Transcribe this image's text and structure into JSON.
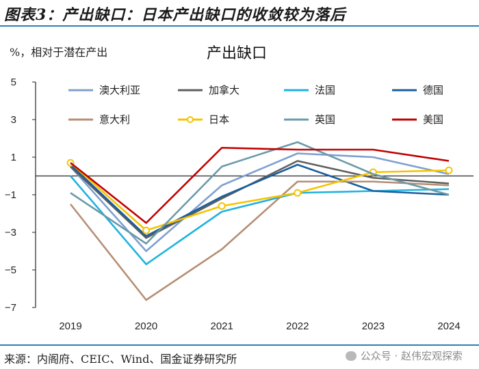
{
  "figure": {
    "title": "图表3：产出缺口：日本产出缺口的收敛较为落后",
    "source": "来源：内阁府、CEIC、Wind、国金证券研究所",
    "watermark": "公众号 · 赵伟宏观探索"
  },
  "chart_data": {
    "type": "line",
    "title": "产出缺口",
    "ylabel": "%，相对于潜在产出",
    "xlabel": "",
    "x": [
      "2019",
      "2020",
      "2021",
      "2022",
      "2023",
      "2024"
    ],
    "ylim": [
      -7,
      5
    ],
    "yticks": [
      5,
      3,
      1,
      -1,
      -3,
      -5,
      -7
    ],
    "grid": false,
    "legend_position": "top",
    "series": [
      {
        "name": "澳大利亚",
        "color": "#7f9fd0",
        "marker": "none",
        "values": [
          0.5,
          -4.0,
          -0.5,
          1.2,
          1.0,
          0.1
        ]
      },
      {
        "name": "加拿大",
        "color": "#5f5f5f",
        "marker": "none",
        "values": [
          0.5,
          -3.3,
          -1.2,
          0.8,
          -0.1,
          -0.4
        ]
      },
      {
        "name": "法国",
        "color": "#1fb2e0",
        "marker": "none",
        "values": [
          0.0,
          -4.7,
          -1.9,
          -0.9,
          -0.8,
          -0.7
        ]
      },
      {
        "name": "德国",
        "color": "#1a5e9c",
        "marker": "none",
        "values": [
          0.6,
          -3.2,
          -1.1,
          0.6,
          -0.8,
          -1.0
        ]
      },
      {
        "name": "意大利",
        "color": "#b58e74",
        "marker": "none",
        "values": [
          -1.5,
          -6.6,
          -3.9,
          -0.3,
          -0.3,
          -0.5
        ]
      },
      {
        "name": "日本",
        "color": "#f5c400",
        "marker": "circle",
        "values": [
          0.7,
          -2.9,
          -1.6,
          -0.9,
          0.2,
          0.3
        ]
      },
      {
        "name": "英国",
        "color": "#6a9aa8",
        "marker": "none",
        "values": [
          -0.9,
          -3.6,
          0.5,
          1.8,
          0.1,
          -1.0
        ]
      },
      {
        "name": "美国",
        "color": "#c00000",
        "marker": "none",
        "values": [
          0.7,
          -2.5,
          1.5,
          1.4,
          1.4,
          0.8
        ]
      }
    ]
  }
}
